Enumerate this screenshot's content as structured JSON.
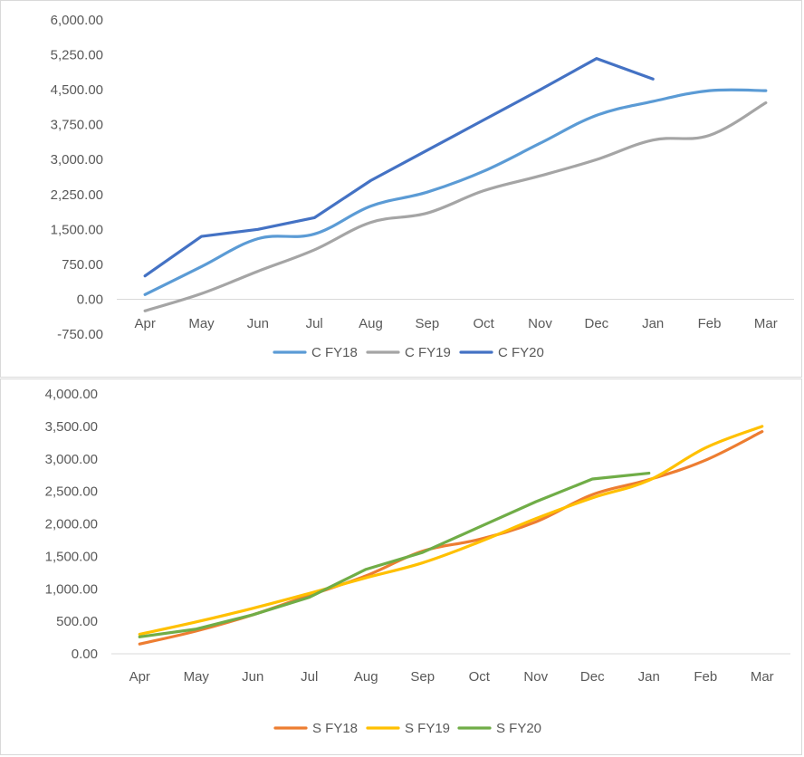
{
  "chart_data": [
    {
      "type": "line",
      "title": "",
      "xlabel": "",
      "ylabel": "",
      "categories": [
        "Apr",
        "May",
        "Jun",
        "Jul",
        "Aug",
        "Sep",
        "Oct",
        "Nov",
        "Dec",
        "Jan",
        "Feb",
        "Mar"
      ],
      "ylim": [
        -750,
        6000
      ],
      "yticks": [
        -750,
        0,
        750,
        1500,
        2250,
        3000,
        3750,
        4500,
        5250,
        6000
      ],
      "ytick_labels": [
        "-750.00",
        "0.00",
        "750.00",
        "1,500.00",
        "2,250.00",
        "3,000.00",
        "3,750.00",
        "4,500.00",
        "5,250.00",
        "6,000.00"
      ],
      "grid": false,
      "legend_position": "bottom",
      "series": [
        {
          "name": "C FY18",
          "color": "#5B9BD5",
          "smooth": true,
          "values": [
            100,
            700,
            1300,
            1400,
            2000,
            2300,
            2750,
            3350,
            3950,
            4250,
            4480,
            4480
          ]
        },
        {
          "name": "C FY19",
          "color": "#A5A5A5",
          "smooth": true,
          "values": [
            -250,
            120,
            600,
            1060,
            1650,
            1850,
            2330,
            2650,
            3000,
            3420,
            3520,
            4220
          ]
        },
        {
          "name": "C FY20",
          "color": "#4472C4",
          "smooth": false,
          "values": [
            500,
            1350,
            1500,
            1750,
            2550,
            3200,
            3850,
            4500,
            5170,
            4730,
            null,
            null
          ]
        }
      ]
    },
    {
      "type": "line",
      "title": "",
      "xlabel": "",
      "ylabel": "",
      "categories": [
        "Apr",
        "May",
        "Jun",
        "Jul",
        "Aug",
        "Sep",
        "Oct",
        "Nov",
        "Dec",
        "Jan",
        "Feb",
        "Mar"
      ],
      "ylim": [
        0,
        4000
      ],
      "yticks": [
        0,
        500,
        1000,
        1500,
        2000,
        2500,
        3000,
        3500,
        4000
      ],
      "ytick_labels": [
        "0.00",
        "500.00",
        "1,000.00",
        "1,500.00",
        "2,000.00",
        "2,500.00",
        "3,000.00",
        "3,500.00",
        "4,000.00"
      ],
      "grid": false,
      "legend_position": "bottom",
      "series": [
        {
          "name": "S FY18",
          "color": "#ED7D31",
          "smooth": true,
          "values": [
            150,
            350,
            600,
            900,
            1200,
            1580,
            1760,
            2030,
            2450,
            2680,
            2980,
            3420
          ]
        },
        {
          "name": "S FY19",
          "color": "#FFC000",
          "smooth": true,
          "values": [
            300,
            490,
            700,
            930,
            1170,
            1400,
            1720,
            2080,
            2400,
            2670,
            3170,
            3500
          ]
        },
        {
          "name": "S FY20",
          "color": "#70AD47",
          "smooth": false,
          "values": [
            260,
            380,
            600,
            870,
            1300,
            1560,
            1950,
            2340,
            2690,
            2780,
            null,
            null
          ]
        }
      ]
    }
  ]
}
